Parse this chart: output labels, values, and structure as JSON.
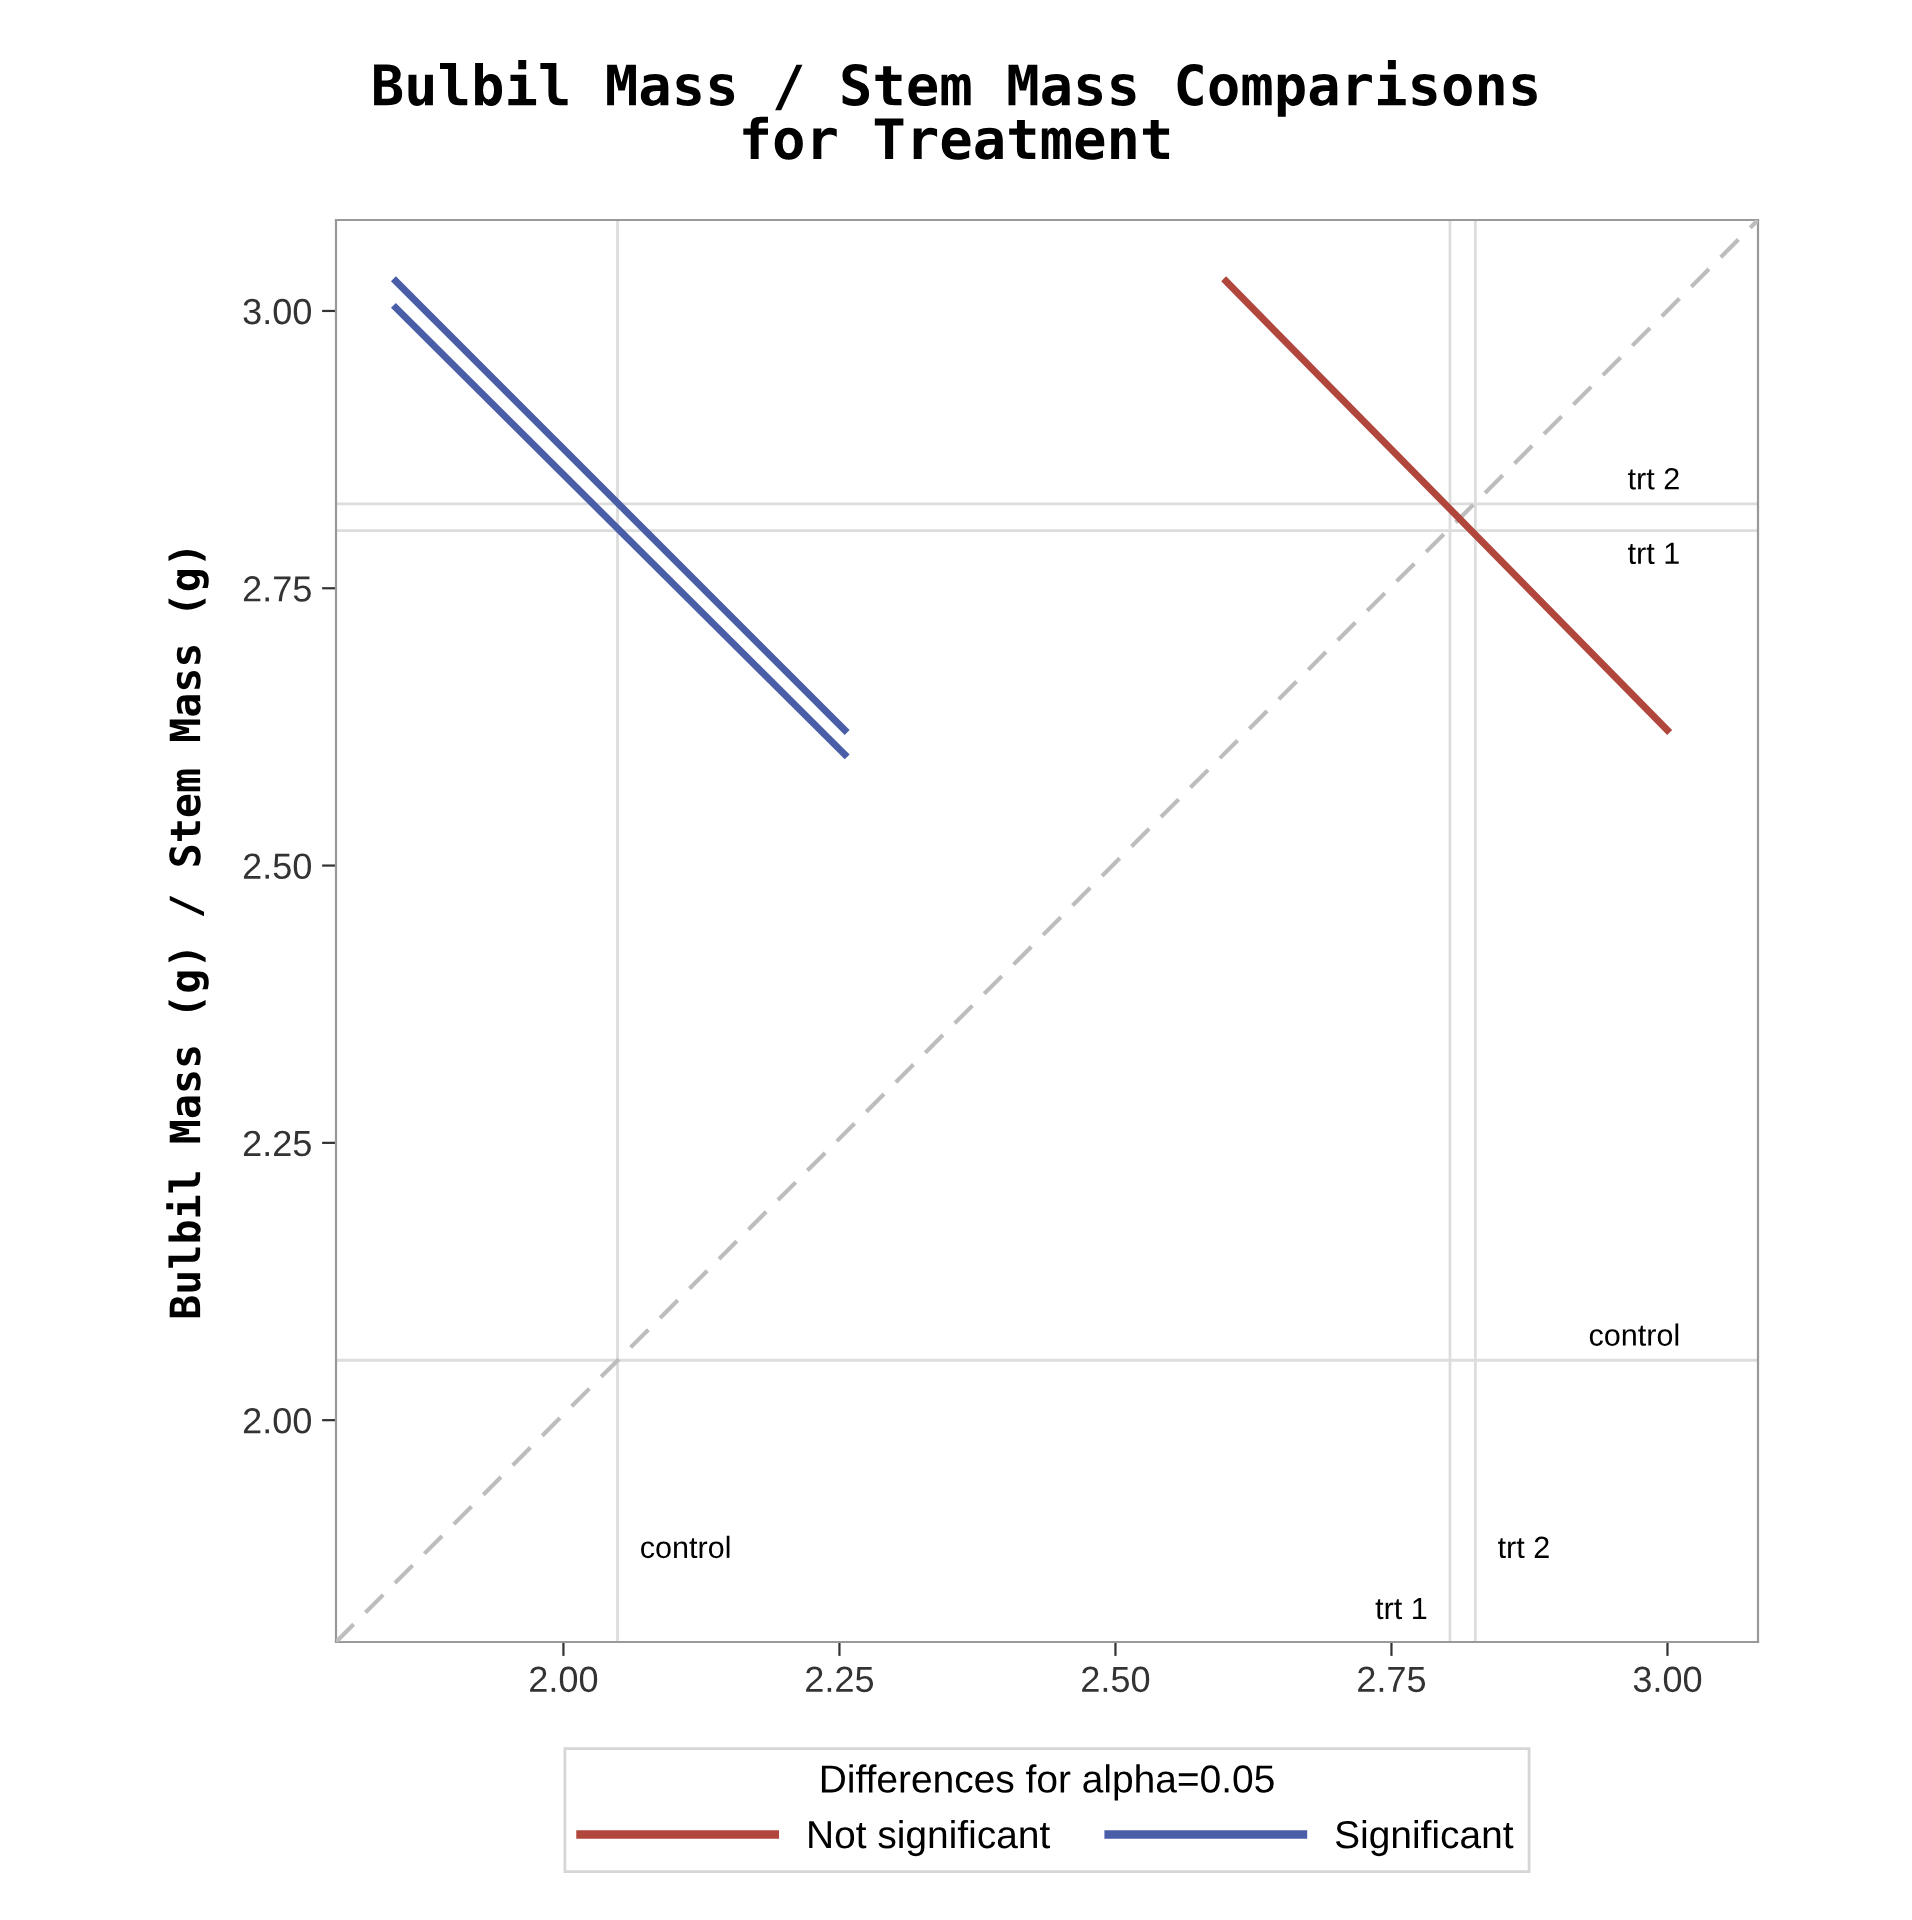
{
  "chart_data": {
    "type": "line",
    "title": "Bulbil Mass / Stem Mass Comparisons\nfor Treatment",
    "ylabel": "Bulbil Mass (g) / Stem Mass (g)",
    "legend_title": "Differences for alpha=0.05",
    "series": [
      {
        "x": [
          1.794,
          3.082
        ],
        "values": [
          1.8,
          3.082
        ],
        "color": "#bdbdbd",
        "line_style": "dashed"
      },
      {
        "name": "Not significant",
        "x": [
          2.598,
          3.002
        ],
        "values": [
          3.029,
          2.62
        ],
        "color": "#b0463c"
      },
      {
        "name": "Significant",
        "x": [
          1.846,
          2.257
        ],
        "values": [
          3.029,
          2.62
        ],
        "color": "#4a5ea8"
      },
      {
        "x": [
          1.846,
          2.257
        ],
        "values": [
          3.005,
          2.598
        ],
        "color": "#4a5ea8"
      }
    ],
    "ref_lines": [
      {
        "axis": "x",
        "value": 2.049,
        "label": "control",
        "color": "#dddddd"
      },
      {
        "axis": "x",
        "value": 2.803,
        "label": "trt 1",
        "color": "#dddddd"
      },
      {
        "axis": "x",
        "value": 2.826,
        "label": "trt 2",
        "color": "#dddddd"
      },
      {
        "axis": "y",
        "value": 2.054,
        "label": "control",
        "color": "#dddddd"
      },
      {
        "axis": "y",
        "value": 2.802,
        "label": "trt 1",
        "color": "#dddddd"
      },
      {
        "axis": "y",
        "value": 2.826,
        "label": "trt 2",
        "color": "#dddddd"
      }
    ],
    "xlim": [
      1.794,
      3.082
    ],
    "ylim": [
      1.8,
      3.082
    ],
    "xticks": [
      {
        "value": 2,
        "label": "2.00"
      },
      2.25,
      {
        "value": 2.5,
        "label": "2.50"
      },
      2.75,
      {
        "value": 3,
        "label": "3.00"
      }
    ],
    "yticks": [
      {
        "value": 2,
        "label": "2.00"
      },
      2.25,
      {
        "value": 2.5,
        "label": "2.50"
      },
      2.75,
      {
        "value": 3,
        "label": "3.00"
      }
    ],
    "grid": false,
    "legend": "bottom",
    "marker": "none"
  }
}
